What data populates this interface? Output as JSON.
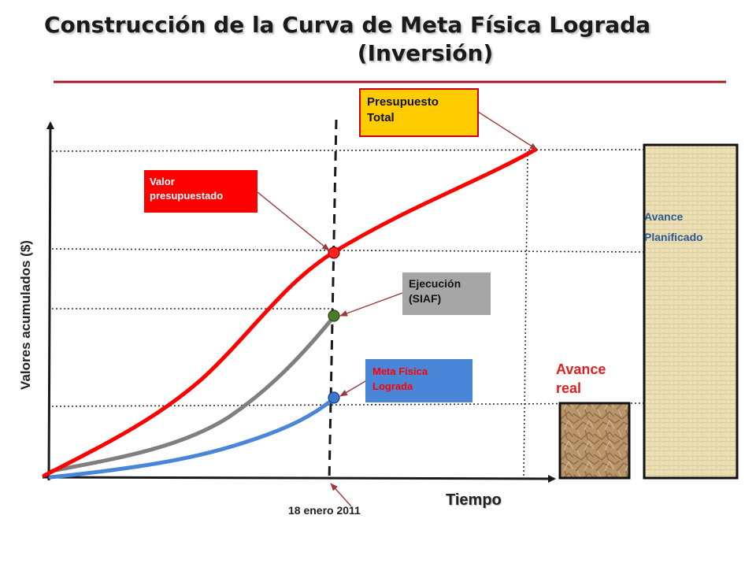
{
  "title": {
    "line1": "Construcción de la Curva de Meta Física Lograda",
    "line2": "(Inversión)"
  },
  "labels": {
    "presupuesto_total_line1": "Presupuesto",
    "presupuesto_total_line2": "Total",
    "valor_presupuestado_line1": "Valor",
    "valor_presupuestado_line2": "presupuestado",
    "ejecucion_line1": "Ejecución",
    "ejecucion_line2": "(SIAF)",
    "meta_fisica_line1": "Meta Física",
    "meta_fisica_line2": "Lograda",
    "avance_real_line1": "Avance",
    "avance_real_line2": "real",
    "avance_planificado_line1": "Avance",
    "avance_planificado_line2": "Planificado"
  },
  "axes": {
    "x_label": "Tiempo",
    "y_label": "Valores acumulados ($)",
    "cutoff_date": "18 enero 2011"
  },
  "colors": {
    "planned_curve": "#ff0000",
    "execution_curve": "#7f7f7f",
    "achieved_curve": "#4a86d8",
    "title_rule": "#a01a2a",
    "paper_texture": "#e9dcb0",
    "crumpled_paper": "#b8946a"
  }
}
